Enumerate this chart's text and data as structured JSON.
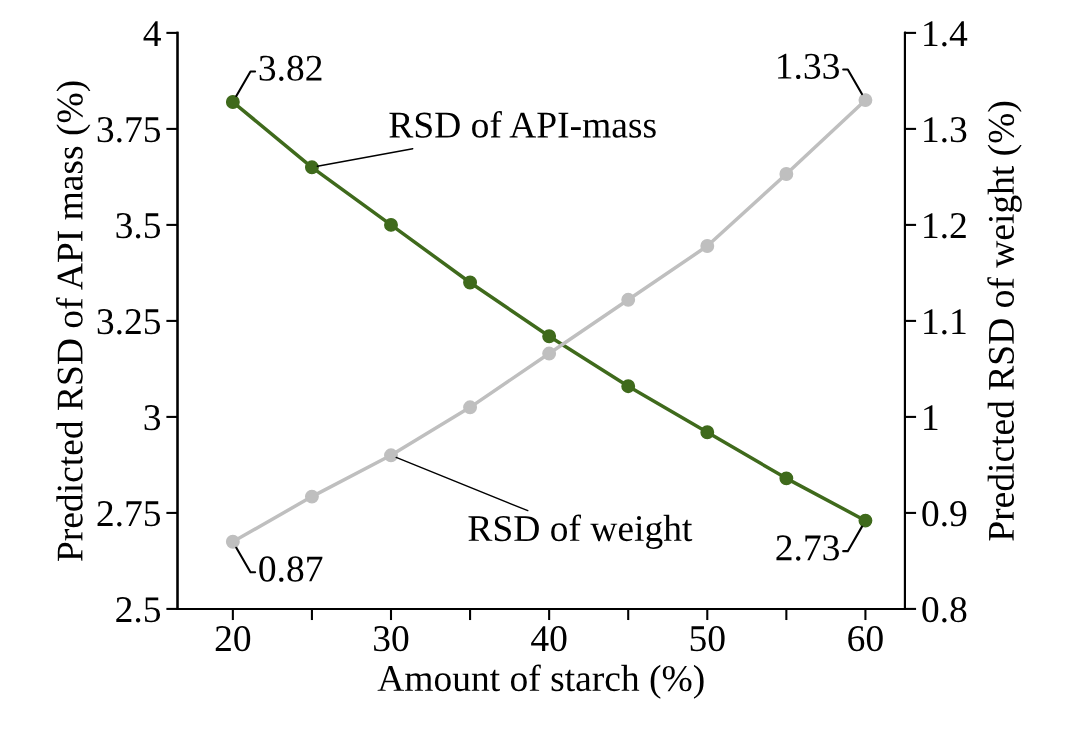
{
  "chart_data": {
    "type": "line",
    "xlabel": "Amount of starch (%)",
    "ylabel": "Predicted RSD of API mass (%)",
    "y2label": "Predicted RSD of weight (%)",
    "x": [
      20,
      25,
      30,
      35,
      40,
      45,
      50,
      55,
      60
    ],
    "series": [
      {
        "name": "RSD of API-mass",
        "color": "#3f6a1c",
        "values": [
          3.82,
          3.65,
          3.5,
          3.35,
          3.21,
          3.08,
          2.96,
          2.84,
          2.73
        ],
        "value_labels": [
          "3.82",
          null,
          null,
          null,
          null,
          null,
          null,
          null,
          "2.73"
        ]
      },
      {
        "name": "RSD of weight",
        "color": "#bfbfbf",
        "axis": "y2",
        "values": [
          0.87,
          0.917,
          0.96,
          1.01,
          1.066,
          1.122,
          1.178,
          1.253,
          1.33
        ],
        "value_labels": [
          "0.87",
          null,
          null,
          null,
          null,
          null,
          null,
          null,
          "1.33"
        ]
      }
    ],
    "xlim": [
      16.5,
      62.5
    ],
    "xticks": [
      20,
      {
        "value": 25,
        "label": null
      },
      30,
      {
        "value": 35,
        "label": null
      },
      40,
      {
        "value": 45,
        "label": null
      },
      50,
      {
        "value": 55,
        "label": null
      },
      60
    ],
    "ylim": [
      2.5,
      4
    ],
    "yticks": [
      2.5,
      2.75,
      3,
      3.25,
      3.5,
      3.75,
      4
    ],
    "y2lim": [
      0.8,
      1.4
    ],
    "y2ticks": [
      0.8,
      0.9,
      1,
      1.1,
      1.2,
      1.3,
      1.4
    ],
    "grid": false,
    "legend": false,
    "marker": "circle",
    "line_style": "solid"
  }
}
